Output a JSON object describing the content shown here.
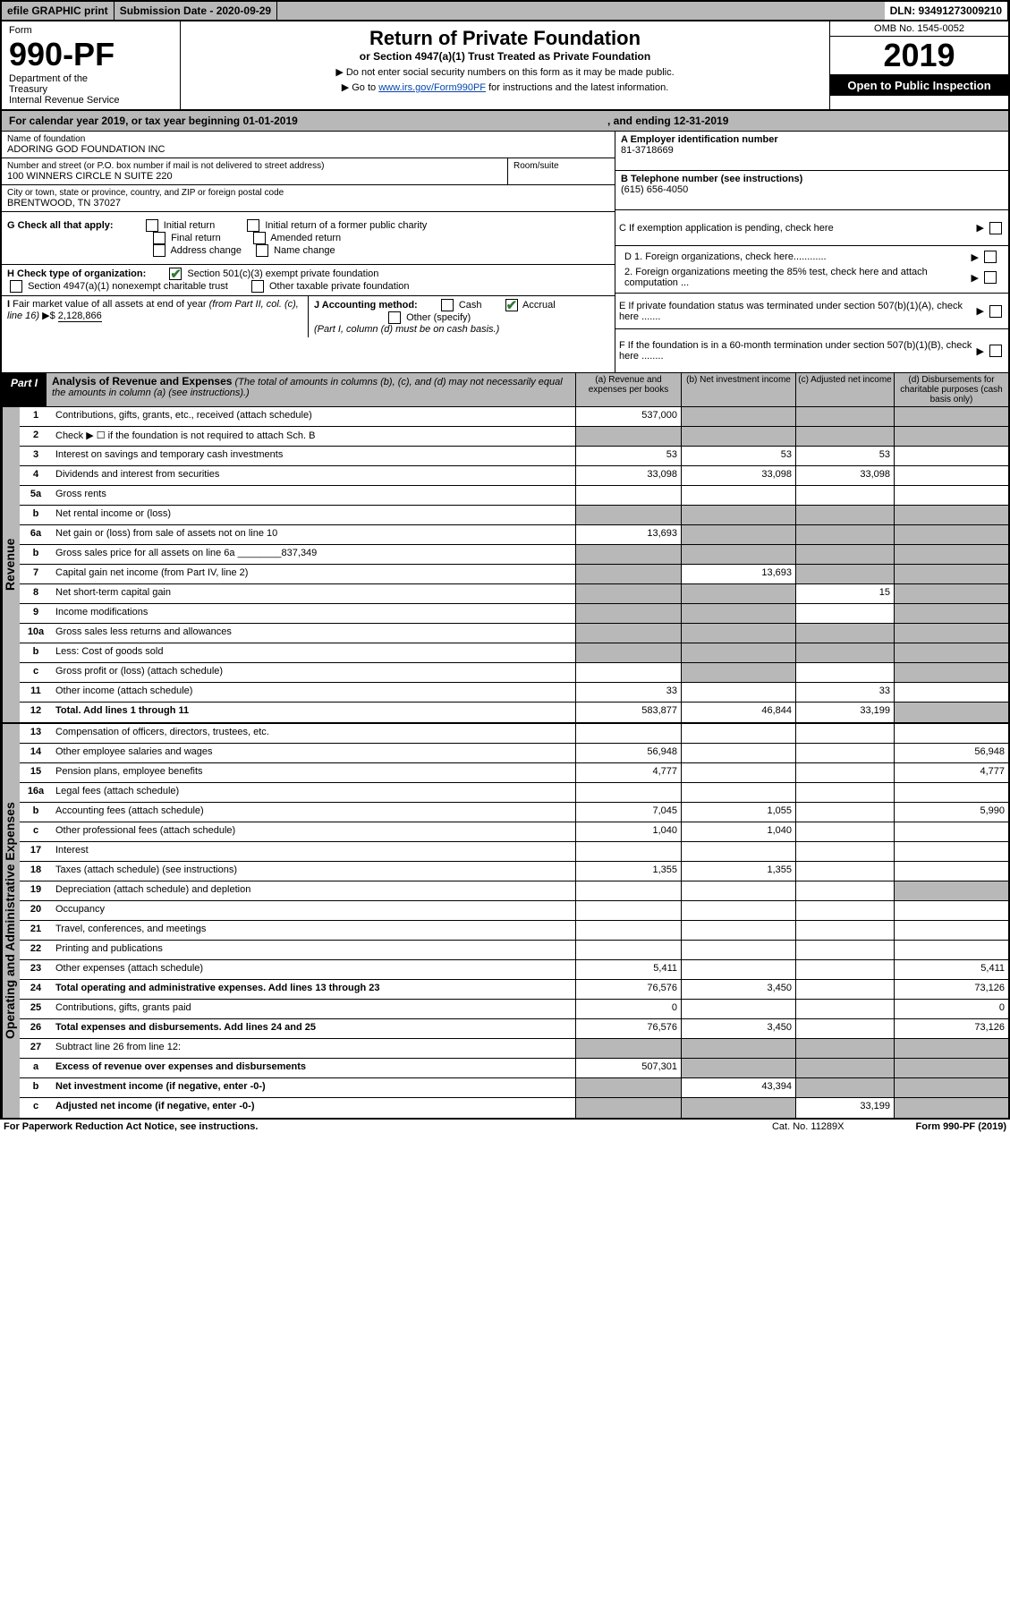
{
  "topbar": {
    "efile": "efile GRAPHIC print",
    "subdate_label": "Submission Date - 2020-09-29",
    "dln": "DLN: 93491273009210"
  },
  "header": {
    "form_label": "Form",
    "form_number": "990-PF",
    "dept": "Department of the Treasury\nInternal Revenue Service",
    "title": "Return of Private Foundation",
    "subtitle": "or Section 4947(a)(1) Trust Treated as Private Foundation",
    "instr1": "▶ Do not enter social security numbers on this form as it may be made public.",
    "instr2_pre": "▶ Go to ",
    "instr2_link": "www.irs.gov/Form990PF",
    "instr2_post": " for instructions and the latest information.",
    "omb": "OMB No. 1545-0052",
    "year": "2019",
    "open": "Open to Public Inspection"
  },
  "calyear": {
    "left": "For calendar year 2019, or tax year beginning 01-01-2019",
    "right": ", and ending 12-31-2019"
  },
  "info": {
    "name_label": "Name of foundation",
    "name": "ADORING GOD FOUNDATION INC",
    "addr_label": "Number and street (or P.O. box number if mail is not delivered to street address)",
    "addr": "100 WINNERS CIRCLE N SUITE 220",
    "room_label": "Room/suite",
    "city_label": "City or town, state or province, country, and ZIP or foreign postal code",
    "city": "BRENTWOOD, TN  37027",
    "A_label": "A Employer identification number",
    "A": "81-3718669",
    "B_label": "B Telephone number (see instructions)",
    "B": "(615) 656-4050",
    "C": "C If exemption application is pending, check here",
    "D1": "D 1. Foreign organizations, check here............",
    "D2": "2. Foreign organizations meeting the 85% test, check here and attach computation ...",
    "E": "E  If private foundation status was terminated under section 507(b)(1)(A), check here .......",
    "F": "F  If the foundation is in a 60-month termination under section 507(b)(1)(B), check here ........"
  },
  "checks": {
    "G_label": "G Check all that apply:",
    "initial": "Initial return",
    "initial_former": "Initial return of a former public charity",
    "final": "Final return",
    "amended": "Amended return",
    "addr_change": "Address change",
    "name_change": "Name change",
    "H_label": "H Check type of organization:",
    "H_501c3": "Section 501(c)(3) exempt private foundation",
    "H_4947": "Section 4947(a)(1) nonexempt charitable trust",
    "H_other": "Other taxable private foundation",
    "I_label": "I Fair market value of all assets at end of year (from Part II, col. (c), line 16)",
    "I_val": "2,128,866",
    "J_label": "J Accounting method:",
    "J_cash": "Cash",
    "J_accrual": "Accrual",
    "J_other": "Other (specify)",
    "J_note": "(Part I, column (d) must be on cash basis.)"
  },
  "partI": {
    "label": "Part I",
    "title": "Analysis of Revenue and Expenses",
    "note": "(The total of amounts in columns (b), (c), and (d) may not necessarily equal the amounts in column (a) (see instructions).)",
    "col_a": "(a)    Revenue and expenses per books",
    "col_b": "(b)  Net investment income",
    "col_c": "(c)  Adjusted net income",
    "col_d": "(d)  Disbursements for charitable purposes (cash basis only)"
  },
  "revenue_label": "Revenue",
  "expense_label": "Operating and Administrative Expenses",
  "rows": [
    {
      "ln": "1",
      "desc": "Contributions, gifts, grants, etc., received (attach schedule)",
      "a": "537,000",
      "b": "",
      "c": "",
      "d": "",
      "grey": [
        "b",
        "c",
        "d"
      ]
    },
    {
      "ln": "2",
      "desc": "Check ▶ ☐ if the foundation is not required to attach Sch. B",
      "a_grey": true,
      "grey": [
        "a",
        "b",
        "c",
        "d"
      ]
    },
    {
      "ln": "3",
      "desc": "Interest on savings and temporary cash investments",
      "a": "53",
      "b": "53",
      "c": "53"
    },
    {
      "ln": "4",
      "desc": "Dividends and interest from securities",
      "a": "33,098",
      "b": "33,098",
      "c": "33,098"
    },
    {
      "ln": "5a",
      "desc": "Gross rents"
    },
    {
      "ln": "b",
      "desc": "Net rental income or (loss)",
      "grey": [
        "a",
        "b",
        "c",
        "d"
      ],
      "a_grey": false
    },
    {
      "ln": "6a",
      "desc": "Net gain or (loss) from sale of assets not on line 10",
      "a": "13,693",
      "grey": [
        "b",
        "c",
        "d"
      ]
    },
    {
      "ln": "b",
      "desc": "Gross sales price for all assets on line 6a ________837,349",
      "grey": [
        "a",
        "b",
        "c",
        "d"
      ]
    },
    {
      "ln": "7",
      "desc": "Capital gain net income (from Part IV, line 2)",
      "b": "13,693",
      "grey": [
        "a",
        "c",
        "d"
      ]
    },
    {
      "ln": "8",
      "desc": "Net short-term capital gain",
      "c": "15",
      "grey": [
        "a",
        "b",
        "d"
      ]
    },
    {
      "ln": "9",
      "desc": "Income modifications",
      "grey": [
        "a",
        "b",
        "d"
      ]
    },
    {
      "ln": "10a",
      "desc": "Gross sales less returns and allowances",
      "grey": [
        "a",
        "b",
        "c",
        "d"
      ]
    },
    {
      "ln": "b",
      "desc": "Less: Cost of goods sold",
      "grey": [
        "a",
        "b",
        "c",
        "d"
      ]
    },
    {
      "ln": "c",
      "desc": "Gross profit or (loss) (attach schedule)",
      "grey": [
        "b",
        "d"
      ]
    },
    {
      "ln": "11",
      "desc": "Other income (attach schedule)",
      "a": "33",
      "c": "33"
    },
    {
      "ln": "12",
      "desc": "Total. Add lines 1 through 11",
      "bold": true,
      "a": "583,877",
      "b": "46,844",
      "c": "33,199",
      "grey": [
        "d"
      ]
    }
  ],
  "exp_rows": [
    {
      "ln": "13",
      "desc": "Compensation of officers, directors, trustees, etc."
    },
    {
      "ln": "14",
      "desc": "Other employee salaries and wages",
      "a": "56,948",
      "d": "56,948"
    },
    {
      "ln": "15",
      "desc": "Pension plans, employee benefits",
      "a": "4,777",
      "d": "4,777"
    },
    {
      "ln": "16a",
      "desc": "Legal fees (attach schedule)"
    },
    {
      "ln": "b",
      "desc": "Accounting fees (attach schedule)",
      "a": "7,045",
      "b": "1,055",
      "d": "5,990"
    },
    {
      "ln": "c",
      "desc": "Other professional fees (attach schedule)",
      "a": "1,040",
      "b": "1,040"
    },
    {
      "ln": "17",
      "desc": "Interest"
    },
    {
      "ln": "18",
      "desc": "Taxes (attach schedule) (see instructions)",
      "a": "1,355",
      "b": "1,355"
    },
    {
      "ln": "19",
      "desc": "Depreciation (attach schedule) and depletion",
      "grey": [
        "d"
      ]
    },
    {
      "ln": "20",
      "desc": "Occupancy"
    },
    {
      "ln": "21",
      "desc": "Travel, conferences, and meetings"
    },
    {
      "ln": "22",
      "desc": "Printing and publications"
    },
    {
      "ln": "23",
      "desc": "Other expenses (attach schedule)",
      "a": "5,411",
      "d": "5,411"
    },
    {
      "ln": "24",
      "desc": "Total operating and administrative expenses. Add lines 13 through 23",
      "bold": true,
      "a": "76,576",
      "b": "3,450",
      "d": "73,126"
    },
    {
      "ln": "25",
      "desc": "Contributions, gifts, grants paid",
      "a": "0",
      "d": "0"
    },
    {
      "ln": "26",
      "desc": "Total expenses and disbursements. Add lines 24 and 25",
      "bold": true,
      "a": "76,576",
      "b": "3,450",
      "d": "73,126"
    },
    {
      "ln": "27",
      "desc": "Subtract line 26 from line 12:",
      "grey": [
        "a",
        "b",
        "c",
        "d"
      ]
    },
    {
      "ln": "a",
      "desc": "Excess of revenue over expenses and disbursements",
      "bold": true,
      "a": "507,301",
      "grey": [
        "b",
        "c",
        "d"
      ]
    },
    {
      "ln": "b",
      "desc": "Net investment income (if negative, enter -0-)",
      "bold": true,
      "b": "43,394",
      "grey": [
        "a",
        "c",
        "d"
      ]
    },
    {
      "ln": "c",
      "desc": "Adjusted net income (if negative, enter -0-)",
      "bold": true,
      "c": "33,199",
      "grey": [
        "a",
        "b",
        "d"
      ]
    }
  ],
  "footer": {
    "left": "For Paperwork Reduction Act Notice, see instructions.",
    "cat": "Cat. No. 11289X",
    "right": "Form 990-PF (2019)"
  }
}
